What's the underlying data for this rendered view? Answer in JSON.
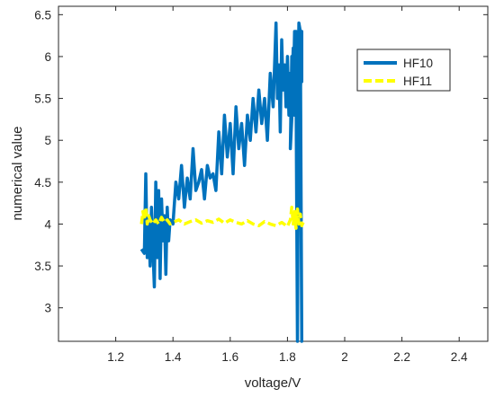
{
  "chart_data": {
    "type": "line",
    "xlabel": "voltage/V",
    "ylabel": "numerical value",
    "xlim": [
      1.0,
      2.5
    ],
    "ylim": [
      2.6,
      6.6
    ],
    "xticks": [
      "1.2",
      "1.4",
      "1.6",
      "1.8",
      "2",
      "2.2",
      "2.4"
    ],
    "yticks": [
      "3",
      "3.5",
      "4",
      "4.5",
      "5",
      "5.5",
      "6",
      "6.5"
    ],
    "legend_position": "top-right",
    "series": [
      {
        "name": "HF10",
        "color": "#0072BD",
        "style": "solid",
        "x": [
          1.29,
          1.3,
          1.305,
          1.31,
          1.315,
          1.32,
          1.325,
          1.33,
          1.335,
          1.34,
          1.345,
          1.35,
          1.355,
          1.36,
          1.365,
          1.37,
          1.375,
          1.38,
          1.385,
          1.39,
          1.4,
          1.41,
          1.42,
          1.43,
          1.44,
          1.45,
          1.46,
          1.47,
          1.48,
          1.49,
          1.5,
          1.51,
          1.52,
          1.53,
          1.54,
          1.55,
          1.56,
          1.57,
          1.58,
          1.59,
          1.6,
          1.61,
          1.62,
          1.63,
          1.64,
          1.65,
          1.66,
          1.67,
          1.68,
          1.69,
          1.7,
          1.71,
          1.72,
          1.73,
          1.74,
          1.75,
          1.76,
          1.765,
          1.77,
          1.775,
          1.78,
          1.785,
          1.79,
          1.795,
          1.8,
          1.805,
          1.81,
          1.815,
          1.82,
          1.825,
          1.83,
          1.835,
          1.84,
          1.845,
          1.85,
          1.845,
          1.84,
          1.835,
          1.83,
          1.825,
          1.82,
          1.815,
          1.81,
          1.82,
          1.83,
          1.84,
          1.845,
          1.85,
          1.85,
          1.845,
          1.84,
          1.835
        ],
        "y": [
          3.7,
          3.65,
          4.6,
          3.6,
          4.0,
          3.5,
          4.2,
          3.7,
          3.25,
          4.5,
          3.6,
          4.4,
          3.35,
          4.3,
          3.8,
          4.1,
          3.4,
          4.2,
          3.8,
          4.05,
          4.0,
          4.5,
          4.3,
          4.7,
          4.2,
          4.55,
          4.3,
          4.9,
          4.4,
          4.5,
          4.65,
          4.3,
          4.7,
          4.55,
          4.6,
          4.4,
          5.1,
          4.6,
          5.3,
          4.8,
          5.2,
          4.6,
          5.4,
          4.9,
          5.2,
          4.7,
          5.3,
          5.0,
          5.5,
          5.1,
          5.6,
          5.2,
          5.5,
          5.0,
          5.8,
          5.4,
          6.4,
          5.5,
          5.9,
          5.1,
          6.2,
          5.6,
          5.9,
          5.4,
          6.0,
          5.3,
          5.8,
          5.5,
          6.1,
          5.3,
          5.6,
          5.2,
          6.4,
          6.3,
          2.6,
          5.8,
          6.2,
          2.6,
          5.7,
          6.3,
          5.5,
          6.0,
          4.9,
          5.6,
          6.3,
          5.9,
          5.5,
          6.3,
          5.7,
          5.9,
          5.6,
          5.8
        ]
      },
      {
        "name": "HF11",
        "color": "#FFFF00",
        "style": "dashed",
        "x": [
          1.29,
          1.295,
          1.3,
          1.305,
          1.31,
          1.315,
          1.32,
          1.33,
          1.34,
          1.35,
          1.36,
          1.37,
          1.38,
          1.39,
          1.4,
          1.42,
          1.44,
          1.46,
          1.48,
          1.5,
          1.52,
          1.54,
          1.56,
          1.58,
          1.6,
          1.62,
          1.64,
          1.66,
          1.68,
          1.7,
          1.72,
          1.74,
          1.76,
          1.78,
          1.8,
          1.81,
          1.815,
          1.82,
          1.825,
          1.83,
          1.835,
          1.84,
          1.845,
          1.85,
          1.855
        ],
        "y": [
          4.0,
          4.15,
          4.05,
          4.2,
          4.0,
          4.1,
          4.05,
          4.0,
          4.05,
          4.0,
          4.08,
          4.02,
          4.05,
          4.0,
          4.02,
          4.05,
          4.0,
          4.03,
          4.05,
          4.01,
          4.04,
          4.02,
          4.06,
          4.01,
          4.05,
          4.02,
          4.0,
          4.04,
          4.0,
          3.98,
          4.03,
          4.0,
          3.98,
          4.02,
          3.97,
          4.05,
          4.2,
          4.0,
          4.15,
          3.95,
          4.18,
          4.0,
          4.12,
          3.98,
          4.02
        ]
      }
    ]
  }
}
